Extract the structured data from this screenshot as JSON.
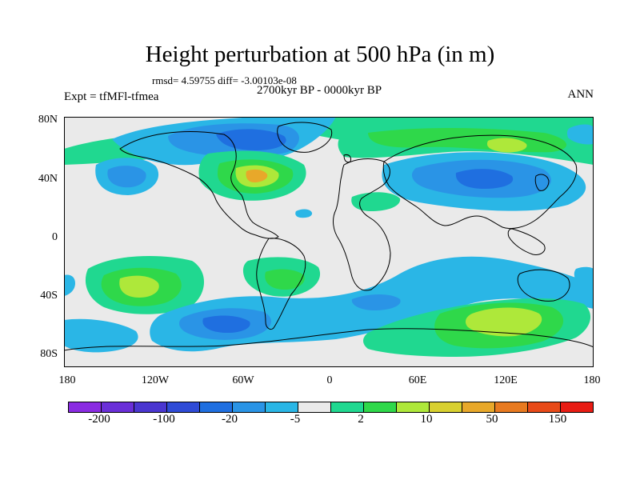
{
  "title": "Height perturbation at 500 hPa (in m)",
  "stats": "rmsd= 4.59755 diff= -3.00103e-08",
  "period": "2700kyr BP - 0000kyr BP",
  "experiment": "Expt = tfMFl-tfmea",
  "season": "ANN",
  "lat_labels": [
    "80N",
    "40N",
    "0",
    "40S",
    "80S"
  ],
  "lon_labels": [
    "180",
    "120W",
    "60W",
    "0",
    "60E",
    "120E",
    "180"
  ],
  "colorbar": {
    "colors": [
      "#8a2be2",
      "#6a2fd8",
      "#4a36d0",
      "#2f4bd6",
      "#1f6fe0",
      "#2a94e6",
      "#2ab6e6",
      "#eaeaea",
      "#20d890",
      "#2fd84a",
      "#aee83a",
      "#d8d030",
      "#e8a82a",
      "#e87a20",
      "#e84a18",
      "#e81c14"
    ],
    "labels": [
      "-200",
      "-100",
      "-20",
      "-5",
      "2",
      "10",
      "50",
      "150"
    ]
  },
  "map_colors": {
    "background": "#eaeaea",
    "light_blue": "#2ab6e6",
    "blue": "#2a94e6",
    "deep_blue": "#1f6fe0",
    "light_green": "#20d890",
    "green": "#2fd84a",
    "yellow_green": "#aee83a",
    "orange": "#e8a82a"
  }
}
